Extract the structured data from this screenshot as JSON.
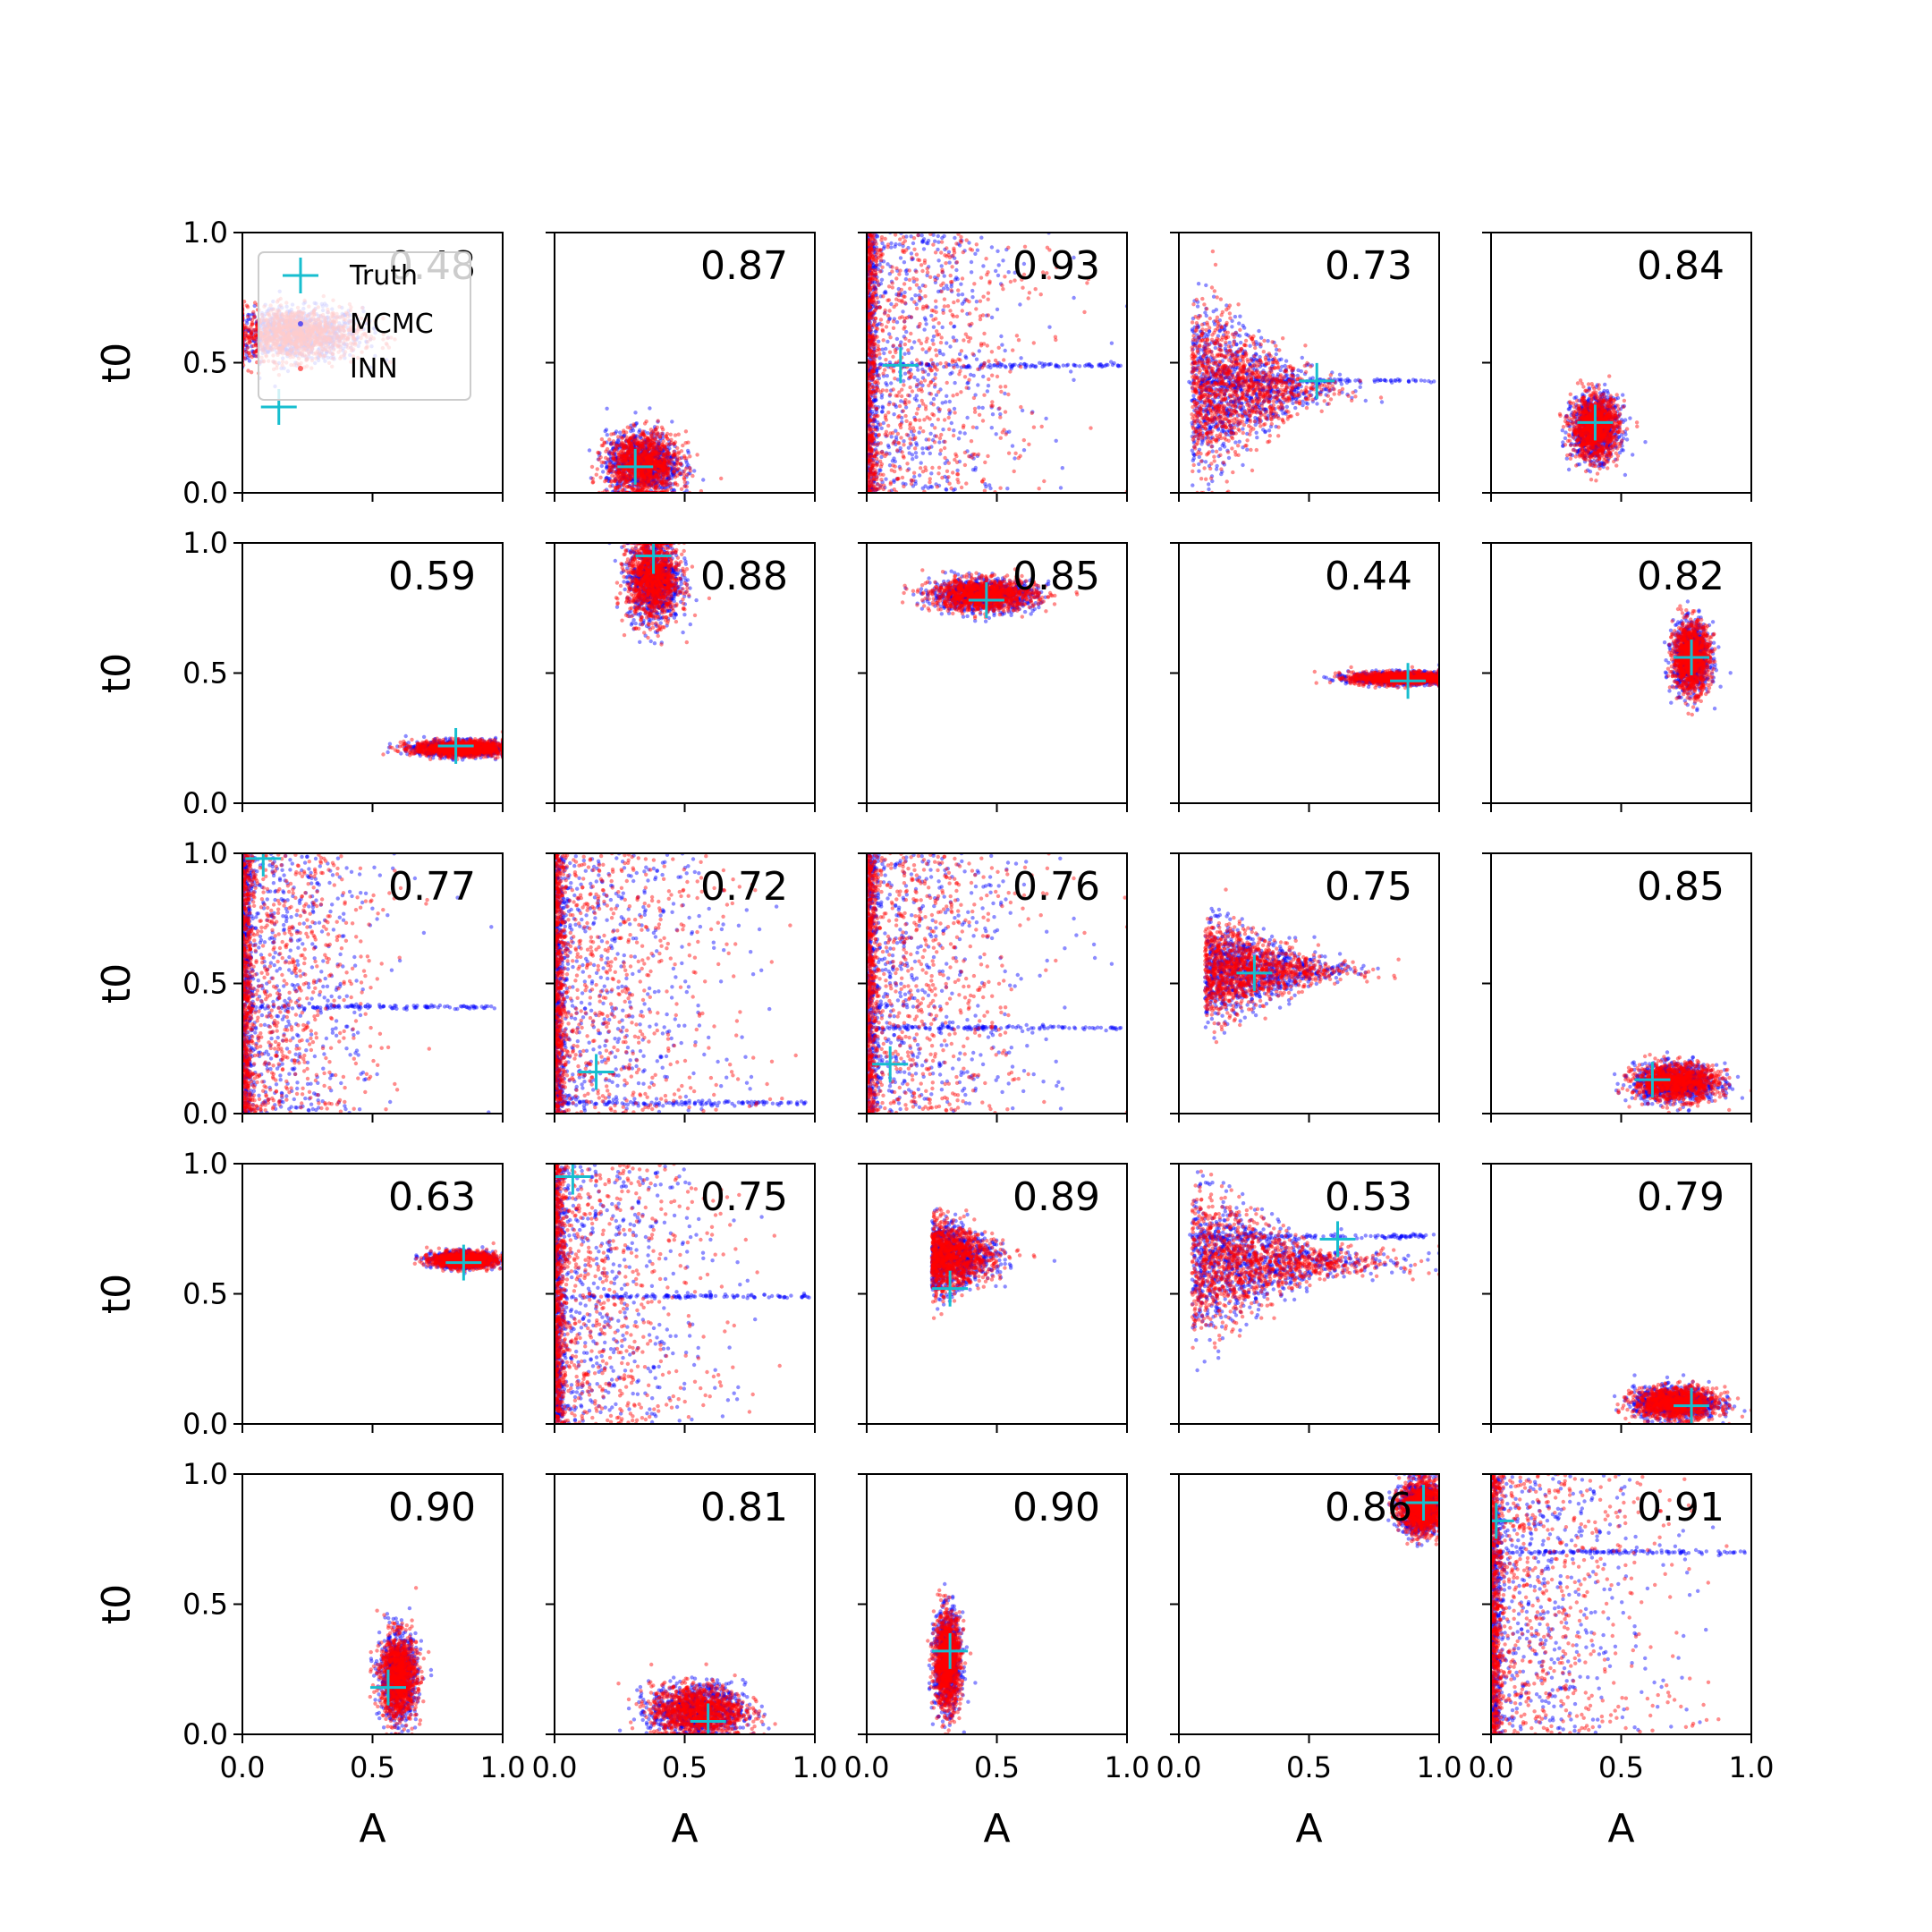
{
  "figure": {
    "xlabel": "A",
    "ylabel": "t0",
    "legend": {
      "position": "top-left of first panel",
      "entries": [
        "Truth",
        "MCMC",
        "INN"
      ]
    }
  },
  "colors": {
    "truth": "#17becf",
    "mcmc": "#0000ff",
    "inn": "#ff0000",
    "legend_frame": "#cccccc"
  },
  "chart_data": {
    "type": "scatter",
    "grid": false,
    "rows": 5,
    "cols": 5,
    "xlim": [
      0,
      1
    ],
    "ylim": [
      0,
      1
    ],
    "xticks": [
      0.0,
      0.5,
      1.0
    ],
    "yticks": [
      0.0,
      0.5,
      1.0
    ],
    "xticklabels": [
      "0.0",
      "0.5",
      "1.0"
    ],
    "yticklabels": [
      "0.0",
      "0.5",
      "1.0"
    ],
    "series": [
      {
        "name": "Truth",
        "marker": "+"
      },
      {
        "name": "MCMC",
        "marker": "."
      },
      {
        "name": "INN",
        "marker": "."
      }
    ],
    "panels": [
      {
        "score": "0.48",
        "truth": [
          0.14,
          0.33
        ],
        "shape": "blob",
        "c": [
          0.2,
          0.61
        ],
        "s": [
          0.13,
          0.05
        ]
      },
      {
        "score": "0.87",
        "truth": [
          0.31,
          0.1
        ],
        "shape": "blob",
        "c": [
          0.34,
          0.11
        ],
        "s": [
          0.07,
          0.06
        ]
      },
      {
        "score": "0.93",
        "truth": [
          0.13,
          0.49
        ],
        "shape": "wall",
        "c": [
          0.05,
          0.5
        ],
        "s": [
          0.3,
          0.25
        ],
        "line": 0.49
      },
      {
        "score": "0.73",
        "truth": [
          0.53,
          0.43
        ],
        "shape": "fan",
        "c": [
          0.05,
          0.4
        ],
        "s": [
          0.22,
          0.17
        ],
        "line": 0.43
      },
      {
        "score": "0.84",
        "truth": [
          0.4,
          0.27
        ],
        "shape": "blob",
        "c": [
          0.4,
          0.25
        ],
        "s": [
          0.045,
          0.06
        ]
      },
      {
        "score": "0.59",
        "truth": [
          0.82,
          0.22
        ],
        "shape": "blob",
        "c": [
          0.84,
          0.21
        ],
        "s": [
          0.09,
          0.015
        ]
      },
      {
        "score": "0.88",
        "truth": [
          0.38,
          0.95
        ],
        "shape": "blob",
        "c": [
          0.38,
          0.86
        ],
        "s": [
          0.05,
          0.08
        ]
      },
      {
        "score": "0.85",
        "truth": [
          0.46,
          0.78
        ],
        "shape": "blob",
        "c": [
          0.45,
          0.8
        ],
        "s": [
          0.1,
          0.03
        ]
      },
      {
        "score": "0.44",
        "truth": [
          0.88,
          0.47
        ],
        "shape": "blob",
        "c": [
          0.86,
          0.48
        ],
        "s": [
          0.1,
          0.012
        ]
      },
      {
        "score": "0.82",
        "truth": [
          0.77,
          0.56
        ],
        "shape": "blob",
        "c": [
          0.77,
          0.56
        ],
        "s": [
          0.035,
          0.065
        ]
      },
      {
        "score": "0.77",
        "truth": [
          0.08,
          0.98
        ],
        "shape": "wall",
        "c": [
          0.05,
          0.65
        ],
        "s": [
          0.25,
          0.25
        ],
        "line": 0.41
      },
      {
        "score": "0.72",
        "truth": [
          0.16,
          0.16
        ],
        "shape": "wall",
        "c": [
          0.05,
          0.5
        ],
        "s": [
          0.3,
          0.28
        ],
        "line": 0.04
      },
      {
        "score": "0.76",
        "truth": [
          0.09,
          0.19
        ],
        "shape": "wall",
        "c": [
          0.1,
          0.5
        ],
        "s": [
          0.3,
          0.28
        ],
        "line": 0.33
      },
      {
        "score": "0.75",
        "truth": [
          0.29,
          0.54
        ],
        "shape": "fan",
        "c": [
          0.1,
          0.55
        ],
        "s": [
          0.22,
          0.1
        ]
      },
      {
        "score": "0.85",
        "truth": [
          0.62,
          0.13
        ],
        "shape": "blob",
        "c": [
          0.71,
          0.12
        ],
        "s": [
          0.08,
          0.035
        ]
      },
      {
        "score": "0.63",
        "truth": [
          0.85,
          0.62
        ],
        "shape": "blob",
        "c": [
          0.85,
          0.63
        ],
        "s": [
          0.06,
          0.015
        ]
      },
      {
        "score": "0.75",
        "truth": [
          0.07,
          0.95
        ],
        "shape": "wall",
        "c": [
          0.05,
          0.55
        ],
        "s": [
          0.28,
          0.25
        ],
        "line": 0.49
      },
      {
        "score": "0.89",
        "truth": [
          0.32,
          0.52
        ],
        "shape": "fan",
        "c": [
          0.25,
          0.64
        ],
        "s": [
          0.11,
          0.07
        ]
      },
      {
        "score": "0.53",
        "truth": [
          0.61,
          0.71
        ],
        "shape": "fan",
        "c": [
          0.05,
          0.62
        ],
        "s": [
          0.3,
          0.15
        ],
        "line": 0.72
      },
      {
        "score": "0.79",
        "truth": [
          0.77,
          0.07
        ],
        "shape": "blob",
        "c": [
          0.71,
          0.08
        ],
        "s": [
          0.08,
          0.03
        ]
      },
      {
        "score": "0.90",
        "truth": [
          0.56,
          0.18
        ],
        "shape": "blob",
        "c": [
          0.6,
          0.22
        ],
        "s": [
          0.035,
          0.08
        ]
      },
      {
        "score": "0.81",
        "truth": [
          0.59,
          0.05
        ],
        "shape": "blob",
        "c": [
          0.55,
          0.09
        ],
        "s": [
          0.09,
          0.05
        ]
      },
      {
        "score": "0.90",
        "truth": [
          0.32,
          0.32
        ],
        "shape": "blob",
        "c": [
          0.31,
          0.28
        ],
        "s": [
          0.025,
          0.09
        ]
      },
      {
        "score": "0.86",
        "truth": [
          0.94,
          0.89
        ],
        "shape": "blob",
        "c": [
          0.93,
          0.87
        ],
        "s": [
          0.04,
          0.05
        ]
      },
      {
        "score": "0.91",
        "truth": [
          0.02,
          0.82
        ],
        "shape": "wall",
        "c": [
          0.04,
          0.5
        ],
        "s": [
          0.3,
          0.28
        ],
        "line": 0.7
      }
    ]
  }
}
